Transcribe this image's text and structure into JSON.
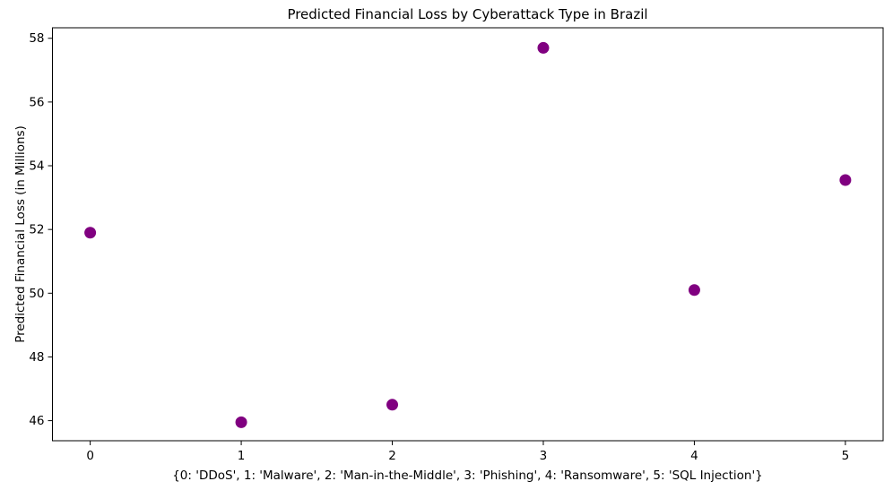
{
  "chart_data": {
    "type": "scatter",
    "title": "Predicted Financial Loss by Cyberattack Type in Brazil",
    "xlabel": "{0: 'DDoS', 1: 'Malware', 2: 'Man-in-the-Middle', 3: 'Phishing', 4: 'Ransomware', 5: 'SQL Injection'}",
    "ylabel": "Predicted Financial Loss (in Millions)",
    "x_category_map": {
      "0": "DDoS",
      "1": "Malware",
      "2": "Man-in-the-Middle",
      "3": "Phishing",
      "4": "Ransomware",
      "5": "SQL Injection"
    },
    "points": [
      {
        "x": 0,
        "category": "DDoS",
        "y": 51.9
      },
      {
        "x": 1,
        "category": "Malware",
        "y": 45.95
      },
      {
        "x": 2,
        "category": "Man-in-the-Middle",
        "y": 46.5
      },
      {
        "x": 3,
        "category": "Phishing",
        "y": 57.7
      },
      {
        "x": 4,
        "category": "Ransomware",
        "y": 50.1
      },
      {
        "x": 5,
        "category": "SQL Injection",
        "y": 53.55
      }
    ],
    "xticks": [
      0,
      1,
      2,
      3,
      4,
      5
    ],
    "yticks": [
      46,
      48,
      50,
      52,
      54,
      56,
      58
    ],
    "xlim": [
      -0.25,
      5.25
    ],
    "ylim": [
      45.37,
      58.33
    ],
    "marker_color": "#800080",
    "marker_radius": 6.5,
    "grid": false,
    "legend_visible": false,
    "background_color": "#ffffff"
  }
}
